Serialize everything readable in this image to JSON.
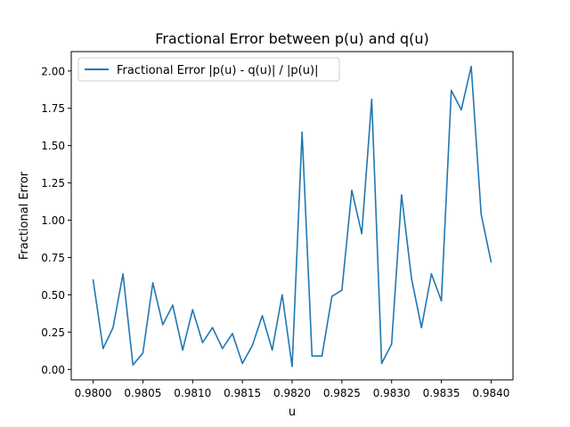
{
  "chart_data": {
    "type": "line",
    "title": "Fractional Error between p(u) and q(u)",
    "xlabel": "u",
    "ylabel": "Fractional Error",
    "xlim": [
      0.97978,
      0.98422
    ],
    "ylim": [
      -0.07,
      2.13
    ],
    "xticks": [
      0.98,
      0.9805,
      0.981,
      0.9815,
      0.982,
      0.9825,
      0.983,
      0.9835,
      0.984
    ],
    "xtick_labels": [
      "0.9800",
      "0.9805",
      "0.9810",
      "0.9815",
      "0.9820",
      "0.9825",
      "0.9830",
      "0.9835",
      "0.9840"
    ],
    "yticks": [
      0,
      0.25,
      0.5,
      0.75,
      1.0,
      1.25,
      1.5,
      1.75,
      2.0
    ],
    "ytick_labels": [
      "0.00",
      "0.25",
      "0.50",
      "0.75",
      "1.00",
      "1.25",
      "1.50",
      "1.75",
      "2.00"
    ],
    "legend_position": "top-left",
    "grid": false,
    "series": [
      {
        "name": "Fractional Error |p(u) - q(u)| / |p(u)|",
        "color": "#1f77b4",
        "x": [
          0.98,
          0.9801,
          0.9802,
          0.9803,
          0.9804,
          0.9805,
          0.9806,
          0.9807,
          0.9808,
          0.9809,
          0.981,
          0.9811,
          0.9812,
          0.9813,
          0.9814,
          0.9815,
          0.9816,
          0.9817,
          0.9818,
          0.9819,
          0.982,
          0.9821,
          0.9822,
          0.9823,
          0.9824,
          0.9825,
          0.9826,
          0.9827,
          0.9828,
          0.9829,
          0.983,
          0.9831,
          0.9832,
          0.9833,
          0.9834,
          0.9835,
          0.9836,
          0.9837,
          0.9838,
          0.9839,
          0.984
        ],
        "values": [
          0.6,
          0.14,
          0.28,
          0.64,
          0.03,
          0.11,
          0.58,
          0.3,
          0.43,
          0.13,
          0.4,
          0.18,
          0.28,
          0.14,
          0.24,
          0.04,
          0.16,
          0.36,
          0.13,
          0.5,
          0.02,
          1.59,
          0.09,
          0.09,
          0.49,
          0.53,
          1.2,
          0.91,
          1.81,
          0.04,
          0.17,
          1.17,
          0.61,
          0.28,
          0.64,
          0.46,
          1.87,
          1.74,
          2.03,
          1.04,
          0.72
        ]
      }
    ]
  }
}
